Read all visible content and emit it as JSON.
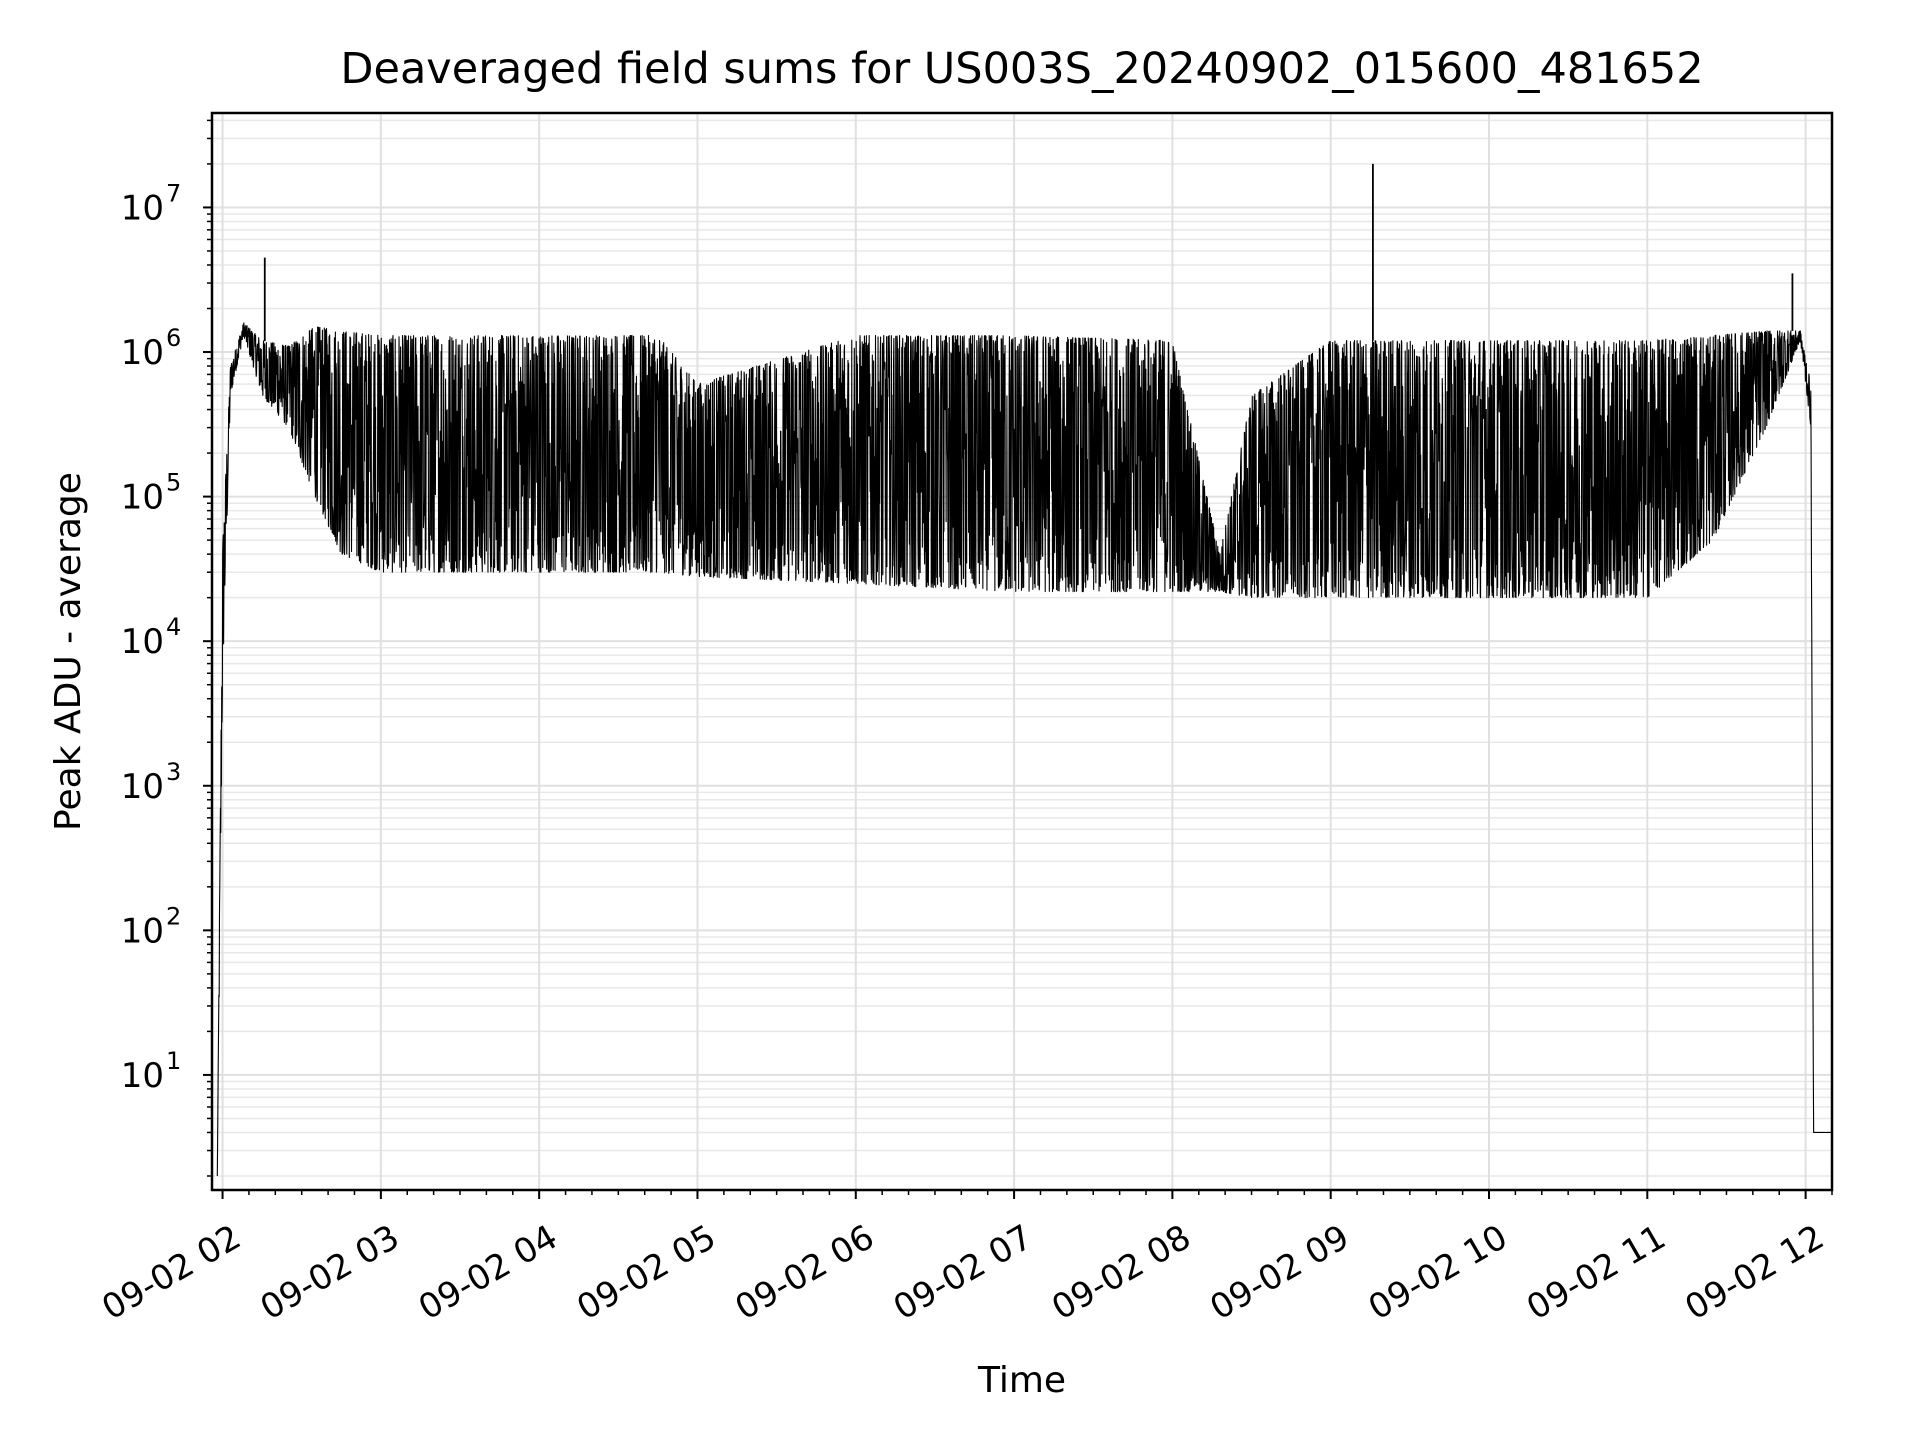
{
  "chart_data": {
    "type": "line",
    "title": "Deaveraged field sums for US003S_20240902_015600_481652",
    "xlabel": "Time",
    "ylabel": "Peak ADU - average",
    "y_scale": "log",
    "grid": true,
    "grid_which": "both",
    "legend": "none",
    "xlim": [
      "09-02 01:56",
      "09-02 12:10"
    ],
    "ylim": [
      1.6,
      45000000
    ],
    "x_ticks": [
      {
        "t": "09-02 02:00",
        "label": "09-02 02"
      },
      {
        "t": "09-02 03:00",
        "label": "09-02 03"
      },
      {
        "t": "09-02 04:00",
        "label": "09-02 04"
      },
      {
        "t": "09-02 05:00",
        "label": "09-02 05"
      },
      {
        "t": "09-02 06:00",
        "label": "09-02 06"
      },
      {
        "t": "09-02 07:00",
        "label": "09-02 07"
      },
      {
        "t": "09-02 08:00",
        "label": "09-02 08"
      },
      {
        "t": "09-02 09:00",
        "label": "09-02 09"
      },
      {
        "t": "09-02 10:00",
        "label": "09-02 10"
      },
      {
        "t": "09-02 11:00",
        "label": "09-02 11"
      },
      {
        "t": "09-02 12:00",
        "label": "09-02 12"
      }
    ],
    "y_ticks": [
      {
        "value": 10,
        "base": "10",
        "exp": "1"
      },
      {
        "value": 100,
        "base": "10",
        "exp": "2"
      },
      {
        "value": 1000,
        "base": "10",
        "exp": "3"
      },
      {
        "value": 10000,
        "base": "10",
        "exp": "4"
      },
      {
        "value": 100000,
        "base": "10",
        "exp": "5"
      },
      {
        "value": 1000000,
        "base": "10",
        "exp": "6"
      },
      {
        "value": 10000000,
        "base": "10",
        "exp": "7"
      }
    ],
    "series": [
      {
        "color": "#000000",
        "envelope": [
          {
            "t": "09-02 01:58",
            "low": 2,
            "high": 2
          },
          {
            "t": "09-02 02:00",
            "low": 5000,
            "high": 45000
          },
          {
            "t": "09-02 02:03",
            "low": 500000,
            "high": 800000
          },
          {
            "t": "09-02 02:08",
            "low": 1300000,
            "high": 1600000
          },
          {
            "t": "09-02 02:15",
            "low": 500000,
            "high": 1200000
          },
          {
            "t": "09-02 02:25",
            "low": 300000,
            "high": 1100000
          },
          {
            "t": "09-02 02:35",
            "low": 100000,
            "high": 1500000
          },
          {
            "t": "09-02 02:45",
            "low": 40000,
            "high": 1400000
          },
          {
            "t": "09-02 03:00",
            "low": 30000,
            "high": 1300000
          },
          {
            "t": "09-02 04:00",
            "low": 30000,
            "high": 1300000
          },
          {
            "t": "09-02 04:45",
            "low": 30000,
            "high": 1300000
          },
          {
            "t": "09-02 05:00",
            "low": 28000,
            "high": 600000
          },
          {
            "t": "09-02 06:00",
            "low": 25000,
            "high": 1300000
          },
          {
            "t": "09-02 07:00",
            "low": 22000,
            "high": 1300000
          },
          {
            "t": "09-02 08:00",
            "low": 22000,
            "high": 1200000
          },
          {
            "t": "09-02 08:18",
            "low": 22000,
            "high": 40000
          },
          {
            "t": "09-02 08:30",
            "low": 20000,
            "high": 500000
          },
          {
            "t": "09-02 09:00",
            "low": 20000,
            "high": 1200000
          },
          {
            "t": "09-02 10:00",
            "low": 20000,
            "high": 1200000
          },
          {
            "t": "09-02 11:00",
            "low": 20000,
            "high": 1200000
          },
          {
            "t": "09-02 11:25",
            "low": 50000,
            "high": 1300000
          },
          {
            "t": "09-02 11:45",
            "low": 300000,
            "high": 1400000
          },
          {
            "t": "09-02 11:58",
            "low": 1200000,
            "high": 1400000
          },
          {
            "t": "09-02 12:02",
            "low": 300000,
            "high": 600000
          },
          {
            "t": "09-02 12:03",
            "low": 4,
            "high": 4
          },
          {
            "t": "09-02 12:10",
            "low": 4,
            "high": 4
          }
        ],
        "spikes": [
          {
            "t": "09-02 02:16",
            "value": 4500000
          },
          {
            "t": "09-02 09:16",
            "value": 20000000
          },
          {
            "t": "09-02 11:55",
            "value": 3500000
          }
        ]
      }
    ]
  }
}
